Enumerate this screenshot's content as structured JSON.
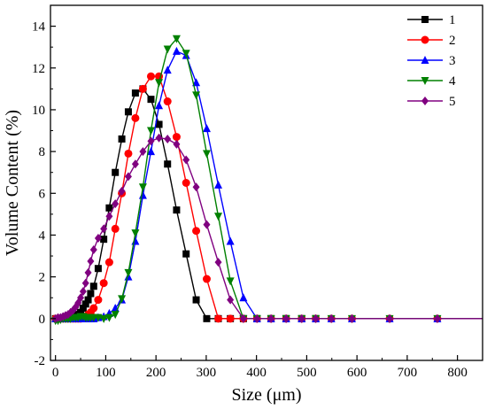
{
  "chart_data": {
    "type": "line",
    "title": "",
    "xlabel": "Size (μm)",
    "ylabel": "Volume Content (%)",
    "xlim": [
      -10,
      850
    ],
    "ylim": [
      -2,
      15
    ],
    "x_ticks": [
      0,
      100,
      200,
      300,
      400,
      500,
      600,
      700,
      800
    ],
    "x_tick_labels": [
      "0",
      "100",
      "200",
      "300",
      "400",
      "500",
      "600",
      "700",
      "800"
    ],
    "y_ticks": [
      -2,
      0,
      2,
      4,
      6,
      8,
      10,
      12,
      14
    ],
    "y_tick_labels": [
      "-2",
      "0",
      "2",
      "4",
      "6",
      "8",
      "10",
      "12",
      "14"
    ],
    "grid": false,
    "legend_position": "top-right",
    "tail_x_max": 850,
    "series": [
      {
        "name": "1",
        "color": "#000000",
        "marker": "square",
        "x": [
          0,
          5,
          10,
          15,
          20,
          25,
          30,
          35,
          40,
          45,
          50,
          55,
          60,
          65,
          70,
          76,
          85,
          96,
          107,
          119,
          132,
          145,
          159,
          174,
          190,
          206,
          223,
          241,
          260,
          280,
          301,
          324,
          348,
          374,
          401,
          429,
          459,
          490,
          518
        ],
        "y": [
          0,
          0,
          0,
          0,
          0,
          0,
          0.05,
          0.1,
          0.15,
          0.2,
          0.3,
          0.5,
          0.7,
          0.9,
          1.2,
          1.55,
          2.4,
          3.8,
          5.3,
          7.0,
          8.6,
          9.9,
          10.8,
          11.0,
          10.5,
          9.3,
          7.4,
          5.2,
          3.1,
          0.9,
          0.0,
          0,
          0,
          0,
          0,
          0,
          0,
          0,
          0
        ]
      },
      {
        "name": "2",
        "color": "#ff0000",
        "marker": "circle",
        "x": [
          0,
          5,
          10,
          15,
          20,
          25,
          30,
          35,
          40,
          45,
          50,
          55,
          60,
          65,
          70,
          76,
          85,
          96,
          107,
          119,
          132,
          145,
          159,
          174,
          190,
          206,
          223,
          241,
          260,
          280,
          301,
          324,
          348,
          374,
          401,
          429,
          459,
          490,
          518,
          549,
          590,
          665,
          760
        ],
        "y": [
          0,
          0,
          0,
          0,
          0,
          0,
          0,
          0,
          0,
          0,
          0,
          0.05,
          0.1,
          0.2,
          0.3,
          0.5,
          0.9,
          1.7,
          2.7,
          4.3,
          6.0,
          7.9,
          9.6,
          11.0,
          11.6,
          11.6,
          10.4,
          8.7,
          6.5,
          4.2,
          1.9,
          0.0,
          0,
          0,
          0,
          0,
          0,
          0,
          0,
          0,
          0,
          0,
          0
        ]
      },
      {
        "name": "3",
        "color": "#0000ff",
        "marker": "triangle-up",
        "x": [
          0,
          5,
          10,
          15,
          20,
          25,
          30,
          35,
          40,
          45,
          50,
          55,
          60,
          65,
          70,
          76,
          85,
          96,
          107,
          119,
          132,
          145,
          159,
          174,
          190,
          206,
          223,
          241,
          260,
          280,
          301,
          324,
          348,
          374,
          401,
          429,
          459,
          490,
          518,
          549,
          590,
          665,
          760
        ],
        "y": [
          0,
          0,
          0,
          0,
          0,
          0,
          0,
          0,
          0,
          0,
          0,
          0,
          0,
          0,
          0,
          0,
          0.05,
          0.1,
          0.25,
          0.5,
          0.9,
          2.0,
          3.7,
          5.9,
          8.0,
          10.2,
          11.9,
          12.8,
          12.6,
          11.3,
          9.1,
          6.4,
          3.7,
          1.0,
          0.0,
          0,
          0,
          0,
          0,
          0,
          0,
          0,
          0
        ]
      },
      {
        "name": "4",
        "color": "#008000",
        "marker": "triangle-down",
        "x": [
          0,
          5,
          10,
          15,
          20,
          25,
          30,
          35,
          40,
          45,
          50,
          55,
          60,
          65,
          70,
          76,
          85,
          96,
          107,
          119,
          132,
          145,
          159,
          174,
          190,
          206,
          223,
          241,
          260,
          280,
          301,
          324,
          348,
          374,
          401,
          429,
          459,
          490,
          518,
          549,
          590,
          665,
          760
        ],
        "y": [
          -0.1,
          -0.1,
          -0.05,
          0,
          0,
          0,
          0,
          0.05,
          0.05,
          0.05,
          0.1,
          0.1,
          0.05,
          0.05,
          0.05,
          0.05,
          0.05,
          0,
          0.05,
          0.2,
          0.95,
          2.2,
          4.1,
          6.3,
          9.0,
          11.3,
          12.9,
          13.4,
          12.7,
          10.7,
          7.9,
          4.9,
          1.8,
          0.0,
          0,
          0,
          0,
          0,
          0,
          0,
          0,
          0,
          0
        ]
      },
      {
        "name": "5",
        "color": "#800080",
        "marker": "diamond",
        "x": [
          0,
          5,
          10,
          15,
          20,
          25,
          30,
          35,
          40,
          45,
          50,
          55,
          60,
          65,
          70,
          76,
          85,
          96,
          107,
          119,
          132,
          145,
          159,
          174,
          190,
          206,
          223,
          241,
          260,
          280,
          301,
          324,
          348,
          374,
          401,
          429,
          459,
          490,
          518,
          549,
          590,
          665,
          760
        ],
        "y": [
          0,
          0.05,
          0.05,
          0.1,
          0.15,
          0.2,
          0.3,
          0.4,
          0.55,
          0.75,
          1.0,
          1.3,
          1.7,
          2.2,
          2.75,
          3.3,
          3.85,
          4.3,
          4.9,
          5.5,
          6.1,
          6.8,
          7.4,
          8.0,
          8.5,
          8.65,
          8.6,
          8.35,
          7.6,
          6.3,
          4.5,
          2.7,
          0.9,
          0.0,
          0,
          0,
          0,
          0,
          0,
          0,
          0,
          0,
          0
        ]
      }
    ]
  }
}
